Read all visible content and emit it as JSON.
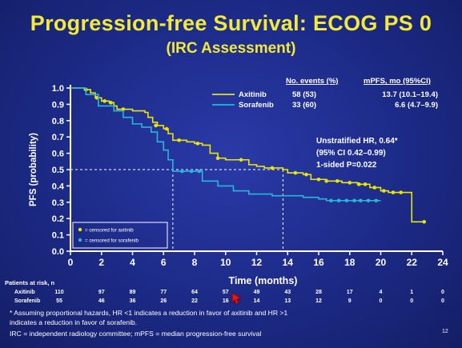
{
  "title": "Progression-free Survival: ECOG PS 0",
  "subtitle": "(IRC Assessment)",
  "legend": {
    "header_events": "No. events (%)",
    "header_mpfs": "mPFS, mo (95%CI)",
    "rows": [
      {
        "name": "Axitinib",
        "events": "58 (53)",
        "mpfs": "13.7 (10.1–19.4)",
        "color": "#e9e600"
      },
      {
        "name": "Sorafenib",
        "events": "33 (60)",
        "mpfs": "6.6 (4.7–9.9)",
        "color": "#29b6d8"
      }
    ]
  },
  "hr_annotation": {
    "line1": "Unstratified HR, 0.64*",
    "line2": "(95% CI 0.42–0.99)",
    "line3": "1-sided P=0.022"
  },
  "censor_legend": {
    "axitinib": "= censored for axitinib",
    "sorafenib": "= censored for sorafenib"
  },
  "chart_data": {
    "type": "line",
    "xlabel": "Time (months)",
    "ylabel": "PFS (probability)",
    "xlim": [
      0,
      24
    ],
    "ylim": [
      0,
      1.0
    ],
    "xticks": [
      0,
      2,
      4,
      6,
      8,
      10,
      12,
      14,
      16,
      18,
      20,
      22,
      24
    ],
    "yticks": [
      0.0,
      0.1,
      0.2,
      0.3,
      0.4,
      0.5,
      0.6,
      0.7,
      0.8,
      0.9,
      1.0
    ],
    "median_line": 0.5,
    "median_times": [
      6.6,
      13.7
    ],
    "series": [
      {
        "name": "Axitinib",
        "color": "#e9e600",
        "steps": [
          [
            0,
            1.0
          ],
          [
            0.9,
            0.99
          ],
          [
            1.3,
            0.97
          ],
          [
            1.6,
            0.94
          ],
          [
            2.0,
            0.92
          ],
          [
            2.5,
            0.91
          ],
          [
            2.8,
            0.89
          ],
          [
            3.0,
            0.87
          ],
          [
            4.0,
            0.86
          ],
          [
            4.8,
            0.85
          ],
          [
            5.0,
            0.82
          ],
          [
            5.3,
            0.79
          ],
          [
            5.6,
            0.77
          ],
          [
            6.0,
            0.75
          ],
          [
            6.3,
            0.72
          ],
          [
            6.6,
            0.68
          ],
          [
            7.5,
            0.67
          ],
          [
            8.0,
            0.66
          ],
          [
            8.5,
            0.65
          ],
          [
            9.0,
            0.6
          ],
          [
            9.5,
            0.57
          ],
          [
            10.0,
            0.56
          ],
          [
            11.5,
            0.53
          ],
          [
            12.0,
            0.52
          ],
          [
            12.5,
            0.51
          ],
          [
            13.7,
            0.5
          ],
          [
            14.0,
            0.48
          ],
          [
            15.0,
            0.47
          ],
          [
            15.5,
            0.44
          ],
          [
            16.5,
            0.43
          ],
          [
            17.5,
            0.42
          ],
          [
            18.5,
            0.41
          ],
          [
            19.3,
            0.39
          ],
          [
            20.0,
            0.37
          ],
          [
            20.5,
            0.36
          ],
          [
            21.5,
            0.36
          ],
          [
            22.0,
            0.18
          ],
          [
            22.8,
            0.18
          ]
        ],
        "censored": [
          [
            1.0,
            0.99
          ],
          [
            1.7,
            0.94
          ],
          [
            2.2,
            0.92
          ],
          [
            2.6,
            0.91
          ],
          [
            3.4,
            0.87
          ],
          [
            5.5,
            0.77
          ],
          [
            6.2,
            0.75
          ],
          [
            7.0,
            0.68
          ],
          [
            8.2,
            0.66
          ],
          [
            9.5,
            0.57
          ],
          [
            11.0,
            0.56
          ],
          [
            13.0,
            0.51
          ],
          [
            14.5,
            0.48
          ],
          [
            15.2,
            0.47
          ],
          [
            16.0,
            0.44
          ],
          [
            16.5,
            0.43
          ],
          [
            17.2,
            0.43
          ],
          [
            18.0,
            0.42
          ],
          [
            18.6,
            0.41
          ],
          [
            19.0,
            0.41
          ],
          [
            19.6,
            0.39
          ],
          [
            20.2,
            0.37
          ],
          [
            20.8,
            0.36
          ],
          [
            21.3,
            0.36
          ],
          [
            22.8,
            0.18
          ]
        ]
      },
      {
        "name": "Sorafenib",
        "color": "#29b6d8",
        "steps": [
          [
            0,
            1.0
          ],
          [
            1.0,
            0.96
          ],
          [
            1.8,
            0.89
          ],
          [
            2.8,
            0.86
          ],
          [
            3.4,
            0.82
          ],
          [
            4.0,
            0.78
          ],
          [
            4.6,
            0.76
          ],
          [
            5.2,
            0.73
          ],
          [
            5.6,
            0.67
          ],
          [
            6.0,
            0.62
          ],
          [
            6.3,
            0.56
          ],
          [
            6.6,
            0.49
          ],
          [
            7.0,
            0.49
          ],
          [
            8.5,
            0.43
          ],
          [
            9.5,
            0.4
          ],
          [
            10.5,
            0.37
          ],
          [
            11.5,
            0.35
          ],
          [
            13.0,
            0.34
          ],
          [
            15.0,
            0.33
          ],
          [
            16.0,
            0.32
          ],
          [
            16.5,
            0.31
          ],
          [
            20.0,
            0.31
          ]
        ],
        "censored": [
          [
            7.2,
            0.49
          ],
          [
            7.8,
            0.49
          ],
          [
            8.3,
            0.49
          ],
          [
            16.8,
            0.31
          ],
          [
            17.3,
            0.31
          ],
          [
            17.8,
            0.31
          ],
          [
            18.3,
            0.31
          ],
          [
            18.7,
            0.31
          ],
          [
            19.2,
            0.31
          ],
          [
            19.7,
            0.31
          ]
        ]
      }
    ]
  },
  "at_risk": {
    "header": "Patients at risk, n",
    "rows": [
      {
        "label": "Axitinib",
        "values": [
          "110",
          "97",
          "89",
          "77",
          "64",
          "57",
          "49",
          "43",
          "28",
          "17",
          "4",
          "1",
          "0"
        ]
      },
      {
        "label": "Sorafenib",
        "values": [
          "55",
          "46",
          "36",
          "26",
          "22",
          "16",
          "14",
          "13",
          "12",
          "9",
          "0",
          "0",
          "0"
        ]
      }
    ]
  },
  "footnotes": [
    "* Assuming proportional hazards, HR <1 indicates a reduction in favor of axitinib and HR >1",
    "indicates a reduction in favor of sorafenib.",
    "IRC = independent radiology committee; mPFS = median progression-free survival"
  ],
  "page_number": "12"
}
